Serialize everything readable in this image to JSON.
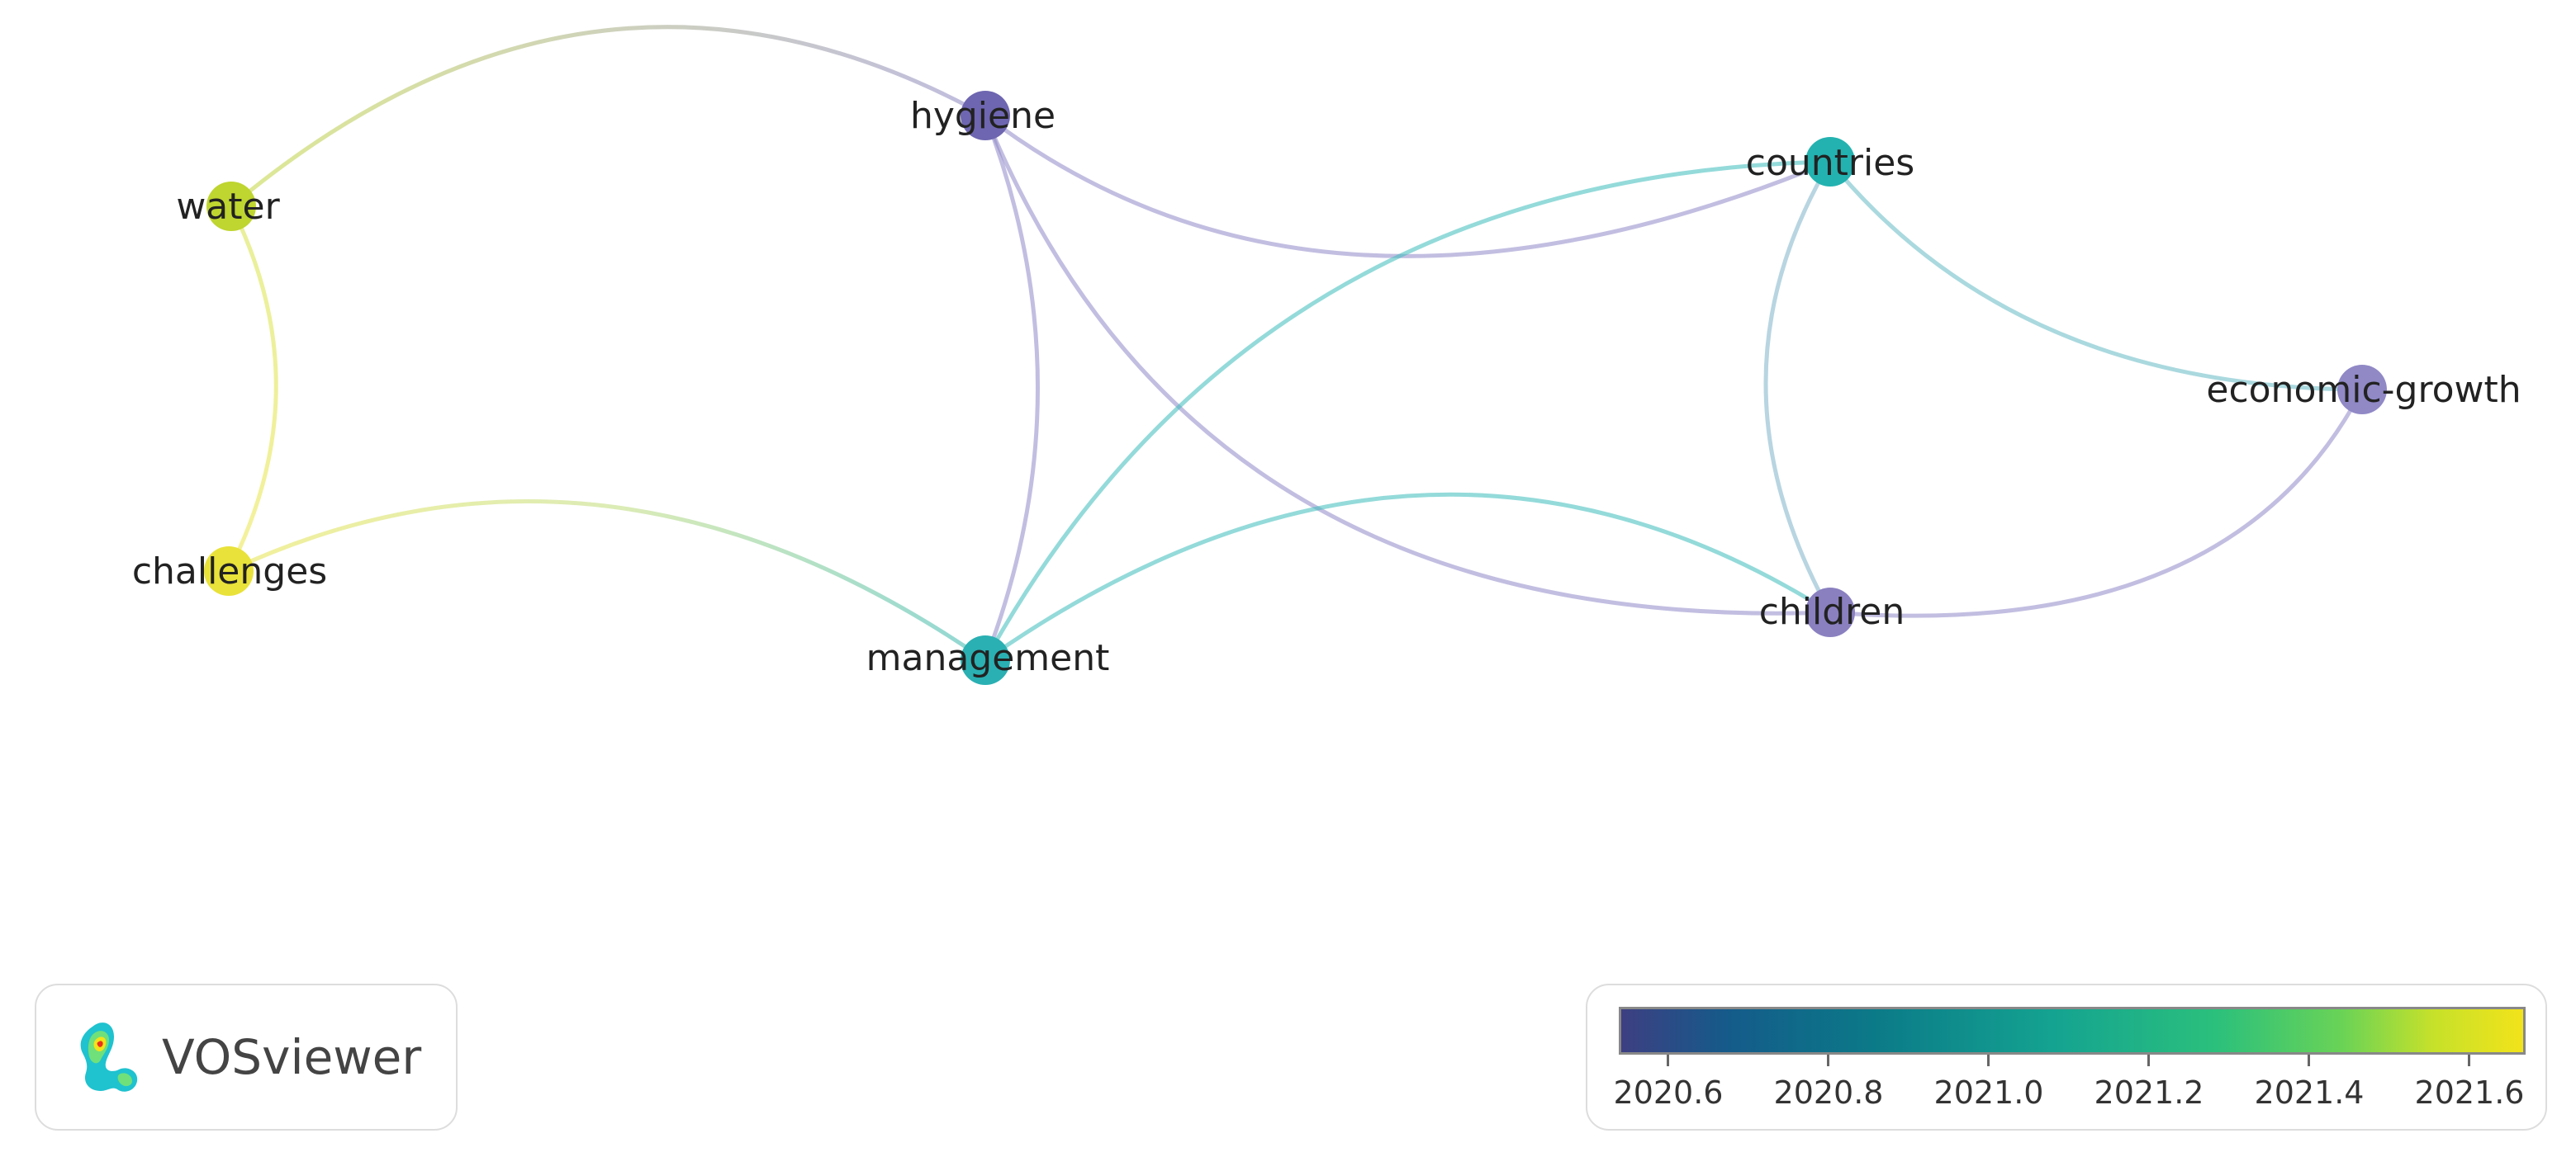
{
  "nodes": {
    "water": {
      "label": "water",
      "color": "#bfd530"
    },
    "hygiene": {
      "label": "hygiene",
      "color": "#6e66b0"
    },
    "countries": {
      "label": "countries",
      "color": "#23b2b0"
    },
    "economic_growth": {
      "label": "economic-growth",
      "color": "#9089c6"
    },
    "challenges": {
      "label": "challenges",
      "color": "#e9e23a"
    },
    "management": {
      "label": "management",
      "color": "#2ab0b3"
    },
    "children": {
      "label": "children",
      "color": "#8a80c0"
    }
  },
  "edges": [
    {
      "from": "water",
      "to": "hygiene"
    },
    {
      "from": "water",
      "to": "challenges"
    },
    {
      "from": "challenges",
      "to": "management"
    },
    {
      "from": "hygiene",
      "to": "countries"
    },
    {
      "from": "hygiene",
      "to": "management"
    },
    {
      "from": "hygiene",
      "to": "children"
    },
    {
      "from": "countries",
      "to": "management"
    },
    {
      "from": "countries",
      "to": "children"
    },
    {
      "from": "countries",
      "to": "economic_growth"
    },
    {
      "from": "management",
      "to": "children"
    },
    {
      "from": "children",
      "to": "economic_growth"
    }
  ],
  "brand": {
    "name": "VOSviewer"
  },
  "legend": {
    "ticks": [
      "2020.6",
      "2020.8",
      "2021.0",
      "2021.2",
      "2021.4",
      "2021.6"
    ],
    "gradient_colors": [
      "#3d3f82",
      "#145b8a",
      "#0b7a88",
      "#14a391",
      "#2bc07c",
      "#6ad356",
      "#c6e12a",
      "#f2e31a"
    ]
  }
}
